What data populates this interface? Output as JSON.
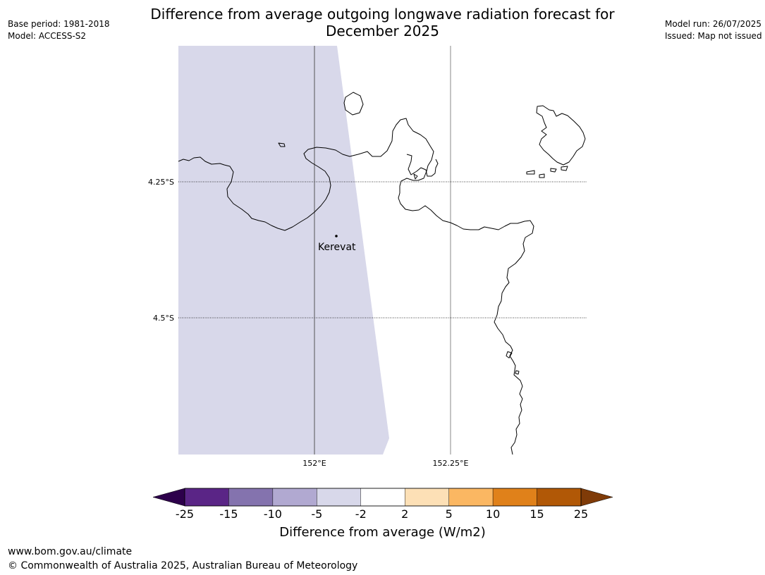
{
  "header": {
    "title_line1": "Difference from average outgoing longwave radiation forecast for",
    "title_line2": "December 2025",
    "base_period": "Base period: 1981-2018",
    "model": "Model: ACCESS-S2",
    "model_run": "Model run: 26/07/2025",
    "issued": "Issued: Map not issued"
  },
  "map": {
    "place_label": "Kerevat",
    "lat_labels": [
      "4.25°S",
      "4.5°S"
    ],
    "lon_labels": [
      "152°E",
      "152.25°E"
    ],
    "anomaly_fill_color": "#d8d8ea",
    "anomaly_category": "-5 to -2",
    "coastline_color": "#000000",
    "gridline_color": "#555555"
  },
  "colorbar": {
    "title": "Difference from average (W/m2)",
    "tick_labels": [
      "-25",
      "-15",
      "-10",
      "-5",
      "-2",
      "2",
      "5",
      "10",
      "15",
      "25"
    ],
    "colors": [
      "#5a2586",
      "#8473ae",
      "#b1a9d1",
      "#d8d8ea",
      "#ffffff",
      "#fde0b6",
      "#fbb762",
      "#e0811a",
      "#b15806"
    ],
    "under_color": "#2d004b",
    "over_color": "#7f3b08"
  },
  "footer": {
    "url": "www.bom.gov.au/climate",
    "copyright": "© Commonwealth of Australia 2025, Australian Bureau of Meteorology"
  }
}
